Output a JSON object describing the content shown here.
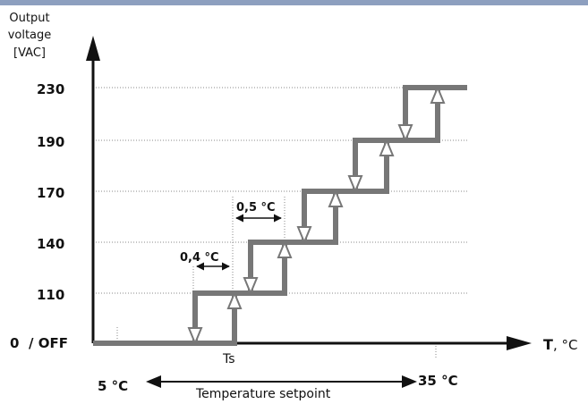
{
  "y_axis": {
    "title_line1": "Output",
    "title_line2": "voltage",
    "title_line3": "[VAC]",
    "ticks": [
      {
        "label": "230",
        "value": 230
      },
      {
        "label": "190",
        "value": 190
      },
      {
        "label": "170",
        "value": 170
      },
      {
        "label": "140",
        "value": 140
      },
      {
        "label": "110",
        "value": 110
      }
    ],
    "zero_label": "0",
    "off_label": "/ OFF"
  },
  "x_axis": {
    "label_bold": "T",
    "label_unit": ", °C",
    "ts_label": "Ts",
    "min_label": "5 °C",
    "max_label": "35 °C",
    "range_label": "Temperature setpoint"
  },
  "annotations": {
    "hysteresis_label": "0,4 °C",
    "step_label": "0,5 °C"
  },
  "colors": {
    "axis": "#111111",
    "curve": "#777777",
    "arrowhead": "#777777",
    "grid": "#888888",
    "topbar": "#8d9fbf"
  }
}
